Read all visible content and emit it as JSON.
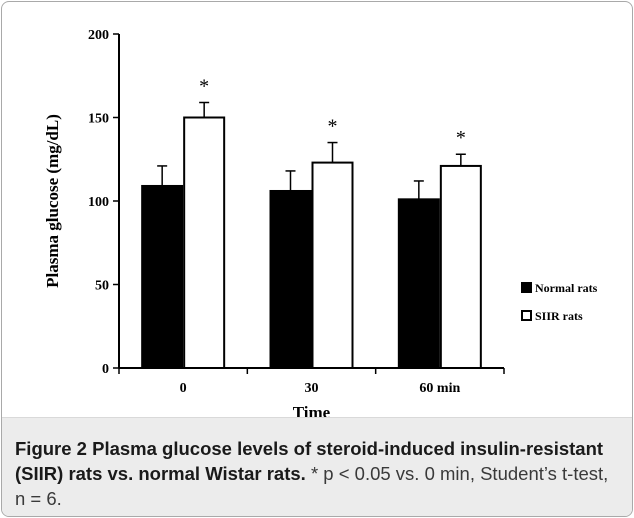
{
  "chart_data": {
    "type": "bar",
    "categories": [
      "0",
      "30",
      "60 min"
    ],
    "series": [
      {
        "name": "Normal rats",
        "values": [
          109,
          106,
          101
        ],
        "errors": [
          12,
          12,
          11
        ],
        "color": "#000000"
      },
      {
        "name": "SIIR rats",
        "values": [
          150,
          123,
          121
        ],
        "errors": [
          9,
          12,
          7
        ],
        "color": "#ffffff"
      }
    ],
    "xlabel": "Time",
    "ylabel": "Plasma glucose (mg/dL)",
    "ylim": [
      0,
      200
    ],
    "yticks": [
      "0",
      "50",
      "100",
      "150",
      "200"
    ],
    "significance_marks": [
      "*",
      "*",
      "*"
    ],
    "legend_position": "right",
    "grid": false
  },
  "caption": {
    "label": "Figure 2",
    "title": "Plasma glucose levels of steroid-induced insulin-resistant (SIIR) rats vs. normal Wistar rats.",
    "note": "* p < 0.05 vs. 0 min, Student’s t-test, n = 6."
  }
}
